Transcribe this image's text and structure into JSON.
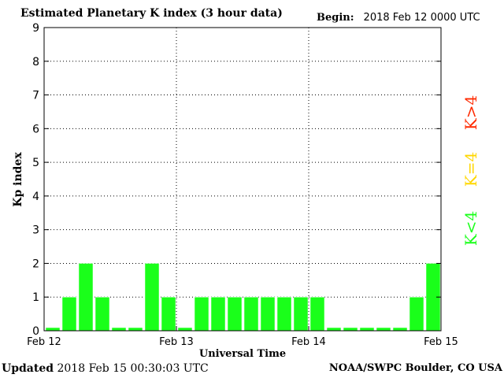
{
  "header": {
    "title": "Estimated Planetary K index (3 hour data)",
    "begin_label": "Begin:",
    "begin_value": "2018 Feb 12 0000 UTC"
  },
  "footer": {
    "updated_label": "Updated",
    "updated_value": "2018 Feb 15 00:30:03 UTC",
    "credit": "NOAA/SWPC Boulder, CO USA"
  },
  "colors": {
    "below": "#1aff1a",
    "equal": "#ffd700",
    "above": "#ff2a00",
    "bar_stroke": "#ffffff"
  },
  "chart_data": {
    "type": "bar",
    "title": "Estimated Planetary K index (3 hour data)",
    "xlabel": "Universal Time",
    "ylabel": "Kp index",
    "ylim": [
      0,
      9
    ],
    "yticks": [
      "0",
      "1",
      "2",
      "3",
      "4",
      "5",
      "6",
      "7",
      "8",
      "9"
    ],
    "xticks": [
      "Feb 12",
      "Feb 13",
      "Feb 14",
      "Feb 15"
    ],
    "grid": "dotted at day boundaries and integer Kp",
    "values": [
      0,
      1,
      2,
      1,
      0,
      0,
      2,
      1,
      0,
      1,
      1,
      1,
      1,
      1,
      1,
      1,
      1,
      0,
      0,
      0,
      0,
      0,
      1,
      2
    ],
    "legend": [
      {
        "label": "K>4",
        "color": "#ff2a00"
      },
      {
        "label": "K=4",
        "color": "#ffd700"
      },
      {
        "label": "K<4",
        "color": "#1aff1a"
      }
    ]
  }
}
